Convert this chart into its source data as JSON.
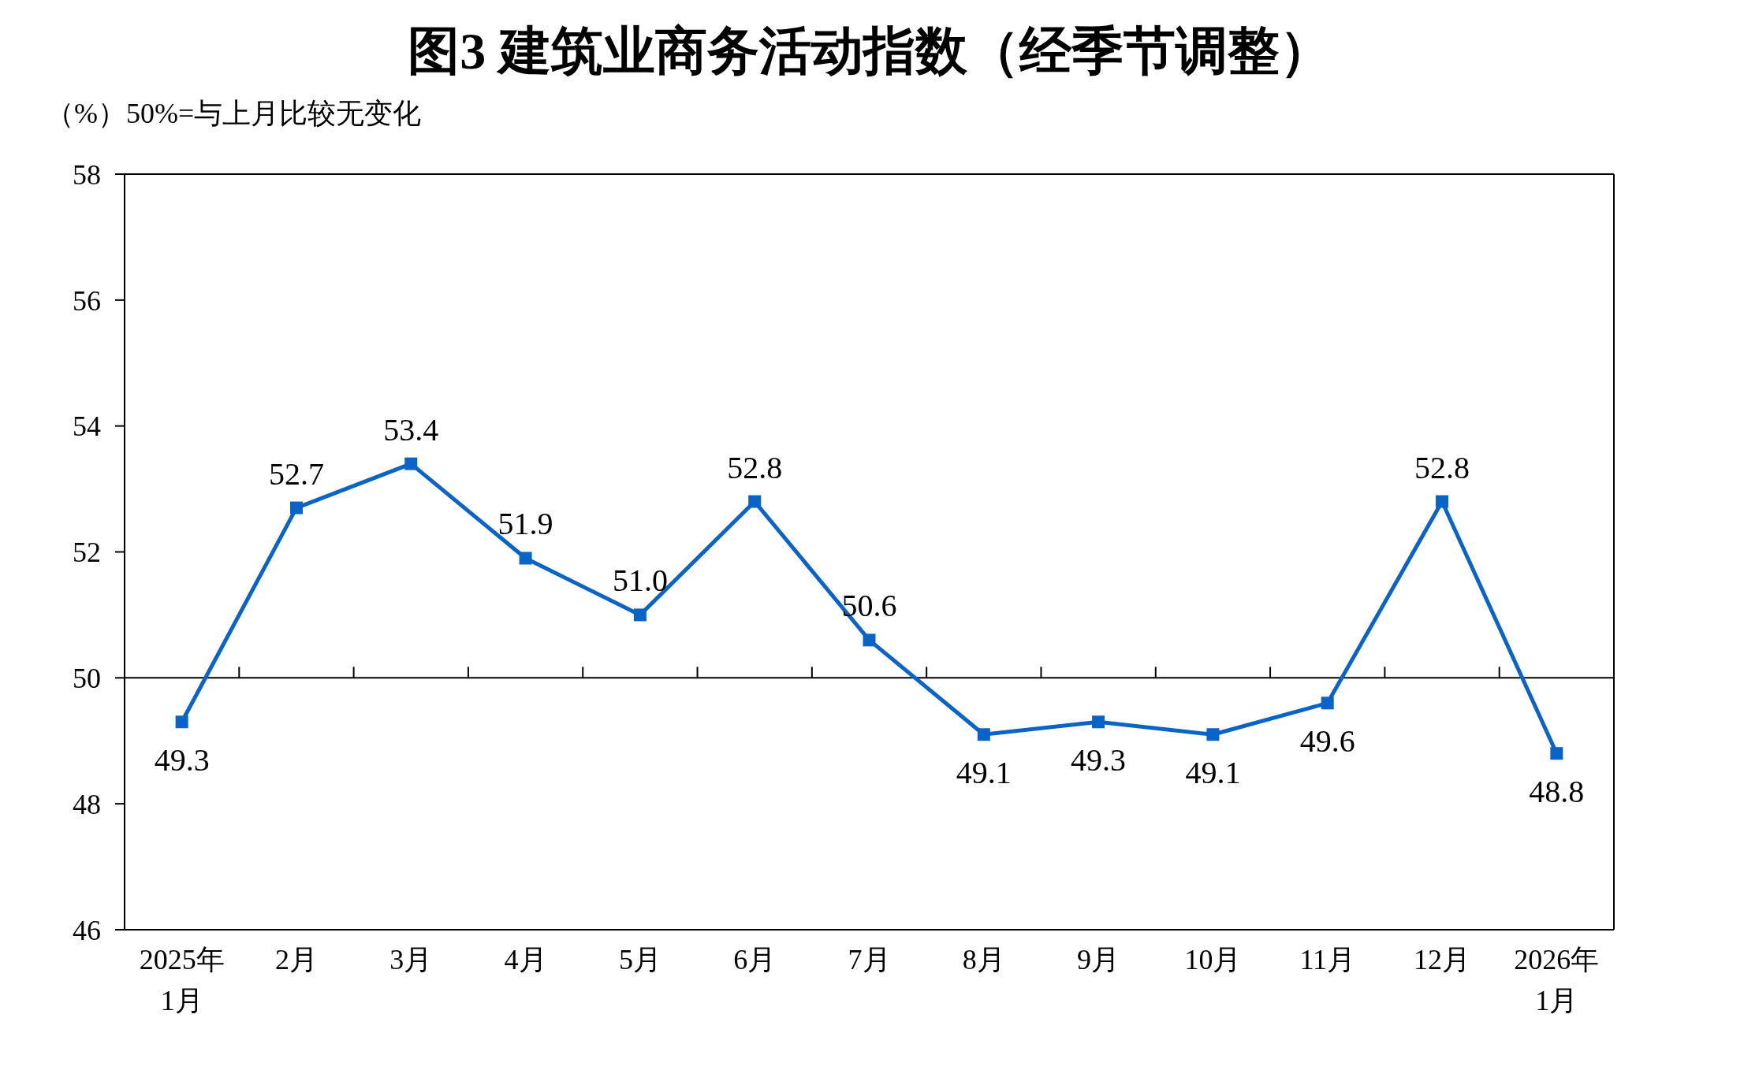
{
  "chart_data": {
    "type": "line",
    "title": "图3  建筑业商务活动指数（经季节调整）",
    "ylabel": "（%）50%=与上月比较无变化",
    "categories": [
      "2025年\n1月",
      "2月",
      "3月",
      "4月",
      "5月",
      "6月",
      "7月",
      "8月",
      "9月",
      "10月",
      "11月",
      "12月",
      "2026年\n1月"
    ],
    "series": [
      {
        "color": "#0a64c8",
        "values": [
          49.3,
          52.7,
          53.4,
          51.9,
          51.0,
          52.8,
          50.6,
          49.1,
          49.3,
          49.1,
          49.6,
          52.8,
          48.8
        ]
      }
    ],
    "ylim": [
      46,
      58
    ],
    "yticks": [
      46,
      48,
      50,
      52,
      54,
      56,
      58
    ],
    "ref_lines": [
      {
        "axis": "y",
        "value": 50,
        "color": "#000000"
      }
    ],
    "value_labels": [
      "49.3",
      "52.7",
      "53.4",
      "51.9",
      "51.0",
      "52.8",
      "50.6",
      "49.1",
      "49.3",
      "49.1",
      "49.6",
      "52.8",
      "48.8"
    ],
    "marker": "square",
    "line_style": "solid",
    "grid": false
  }
}
